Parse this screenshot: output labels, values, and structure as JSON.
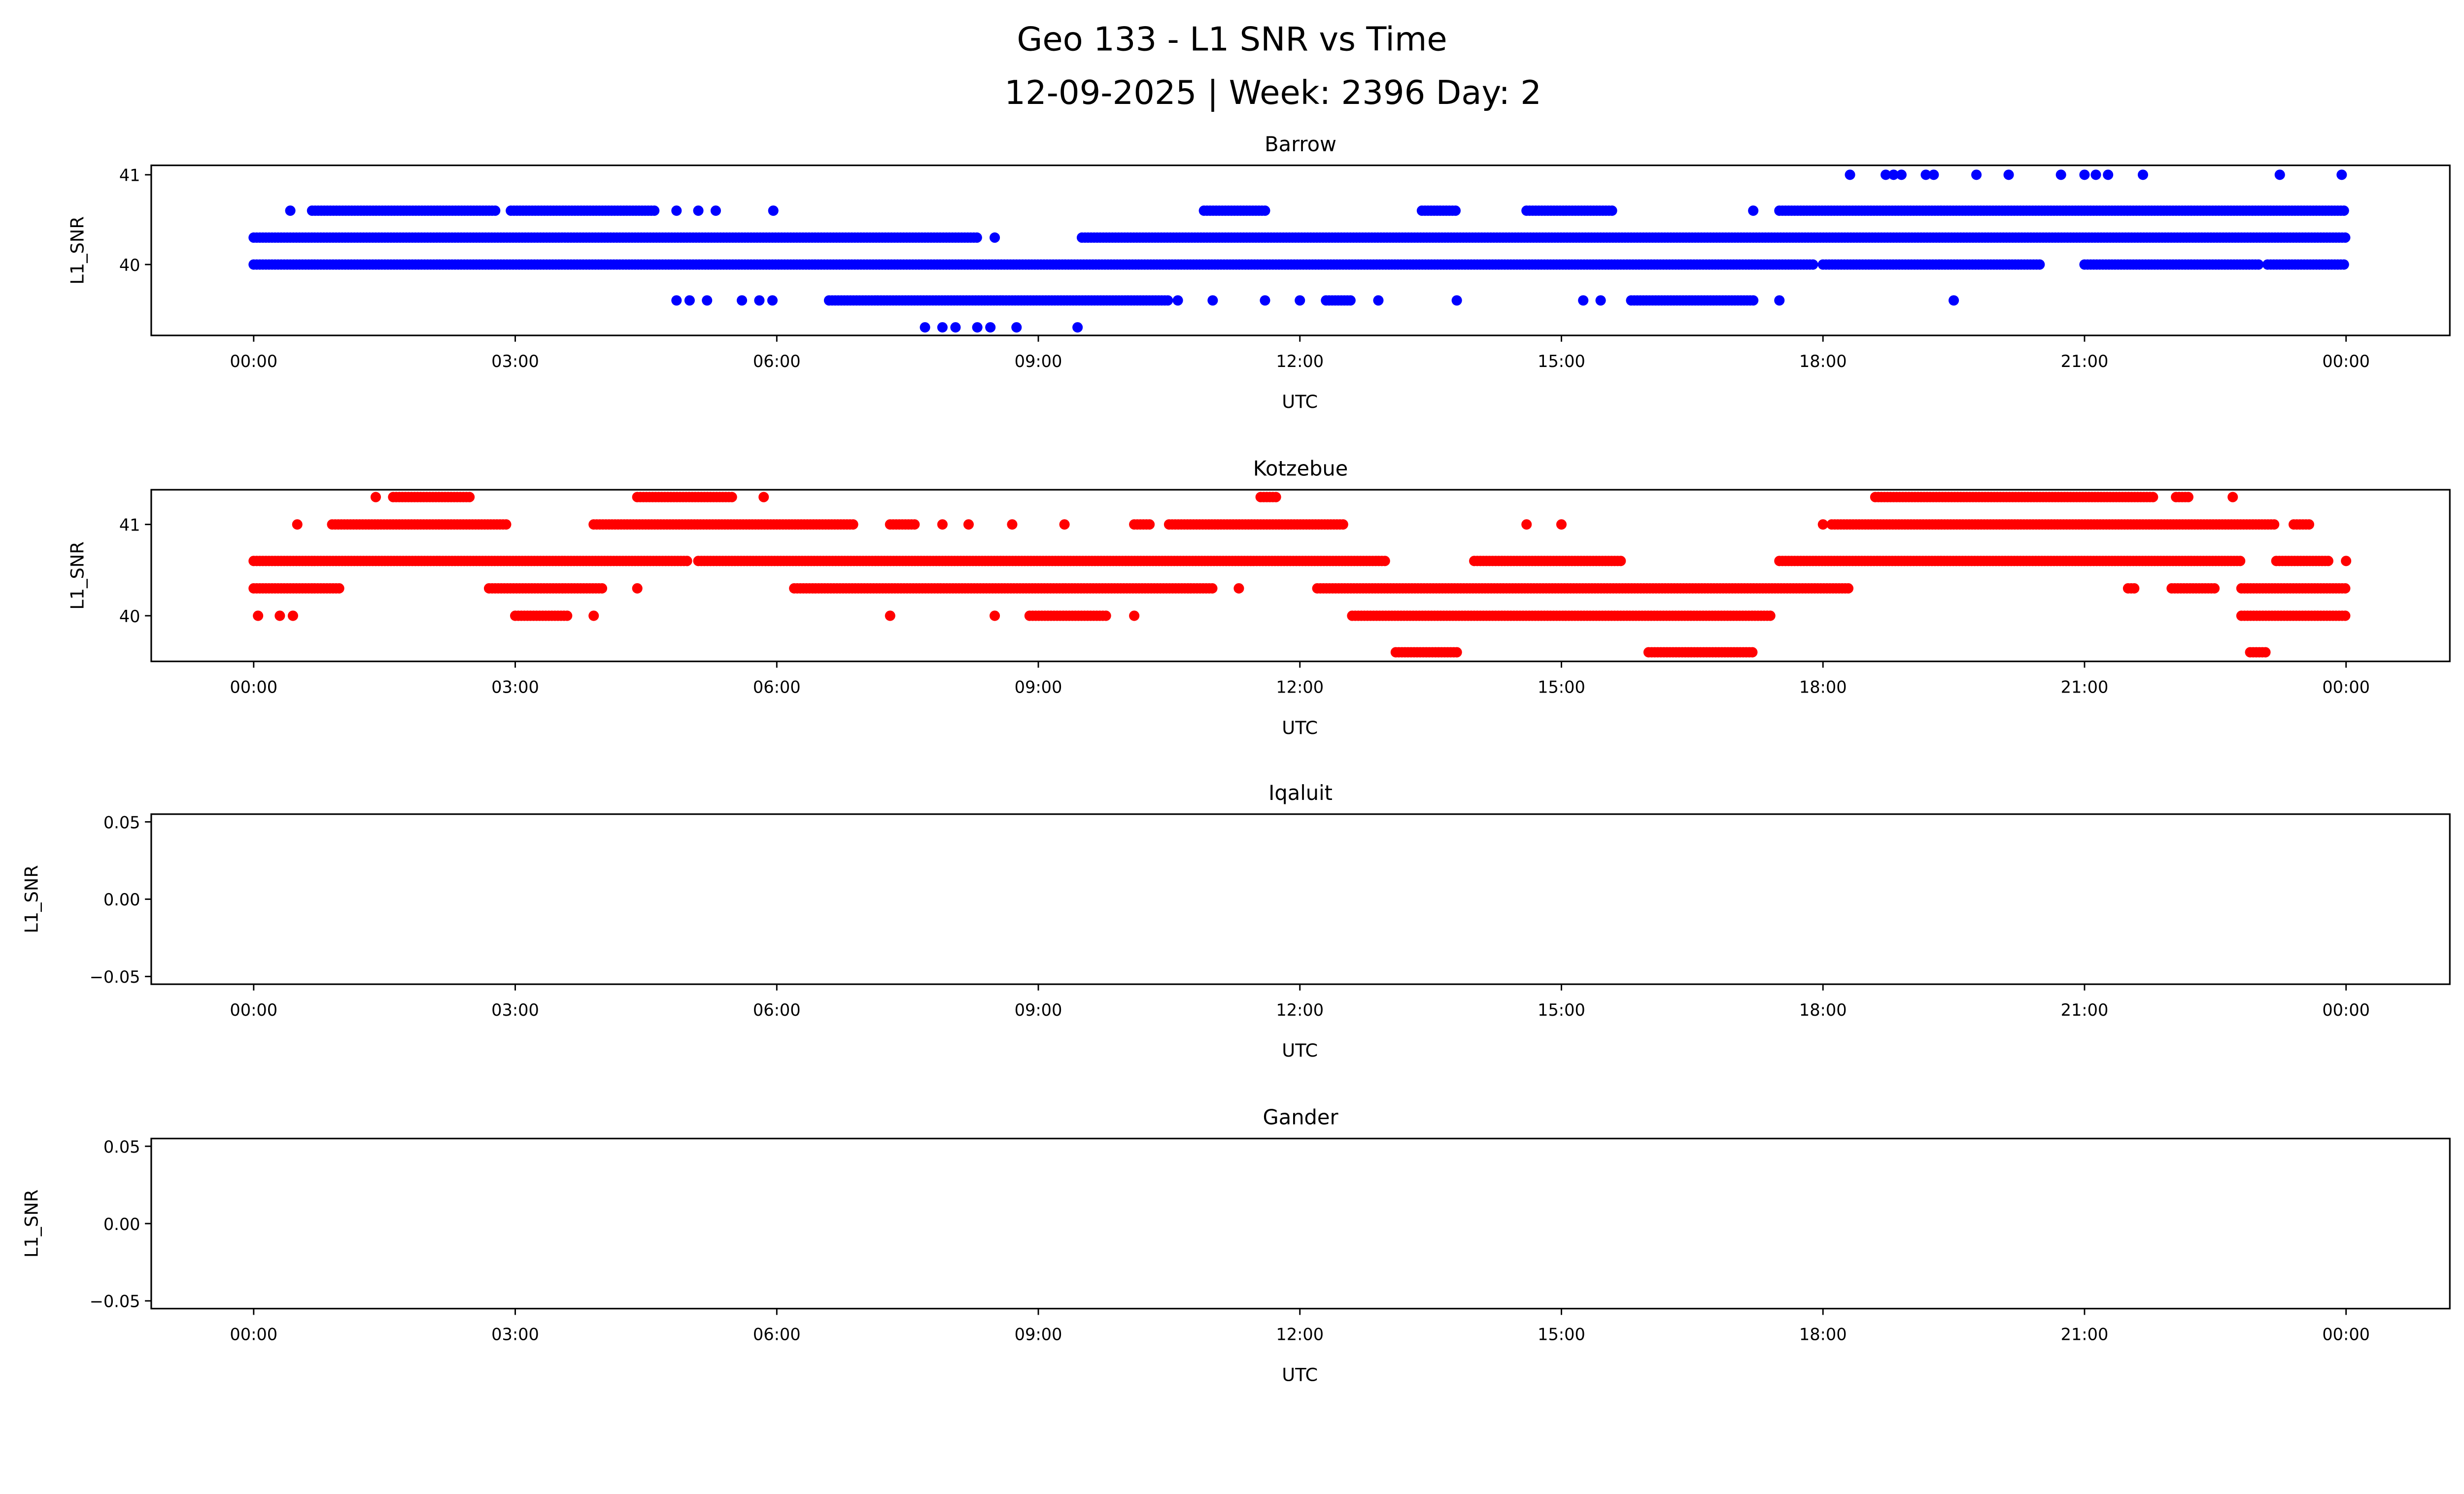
{
  "title_line1": "Geo 133 - L1 SNR vs Time",
  "title_line2": "12-09-2025 | Week: 2396 Day: 2",
  "chart_data": [
    {
      "type": "scatter",
      "title": "Barrow",
      "xlabel": "UTC",
      "ylabel": "L1_SNR",
      "color": "#0000ff",
      "xlim_hours": [
        -1.175,
        25.19
      ],
      "xticks": [
        "00:00",
        "03:00",
        "06:00",
        "09:00",
        "12:00",
        "15:00",
        "18:00",
        "21:00",
        "00:00"
      ],
      "xtick_hours": [
        0,
        3,
        6,
        9,
        12,
        15,
        18,
        21,
        24
      ],
      "ylim": [
        39.21,
        41.105
      ],
      "yticks": [
        "40",
        "41"
      ],
      "ytick_values": [
        40,
        41
      ],
      "series": [
        {
          "y": 41.0,
          "points": [
            18.31,
            18.72,
            18.81,
            18.9,
            19.18,
            19.27,
            19.76,
            20.13,
            20.73,
            21.0,
            21.13,
            21.27,
            21.67,
            23.24,
            23.95
          ],
          "runs": []
        },
        {
          "y": 40.6,
          "points": [
            0.42,
            4.85,
            5.1,
            5.3,
            5.96,
            17.2
          ],
          "runs": [
            [
              0.67,
              2.8
            ],
            [
              2.95,
              4.6
            ],
            [
              10.9,
              11.6
            ],
            [
              13.4,
              13.8
            ],
            [
              14.6,
              15.6
            ],
            [
              17.5,
              24.0
            ]
          ]
        },
        {
          "y": 40.3,
          "points": [
            8.5
          ],
          "runs": [
            [
              0.0,
              8.3
            ],
            [
              9.5,
              24.0
            ]
          ]
        },
        {
          "y": 40.0,
          "points": [],
          "runs": [
            [
              0.0,
              17.9
            ],
            [
              18.0,
              20.5
            ],
            [
              21.0,
              23.0
            ],
            [
              23.1,
              24.0
            ]
          ]
        },
        {
          "y": 39.6,
          "points": [
            4.85,
            5.0,
            5.2,
            5.6,
            5.8,
            5.95,
            10.6,
            11.0,
            11.6,
            12.0,
            12.9,
            13.8,
            15.25,
            15.45,
            17.5,
            19.5
          ],
          "runs": [
            [
              6.6,
              10.5
            ],
            [
              12.3,
              12.6
            ],
            [
              15.8,
              17.2
            ]
          ]
        },
        {
          "y": 39.3,
          "points": [
            7.7,
            7.9,
            8.05,
            8.3,
            8.45,
            8.75,
            9.45
          ],
          "runs": []
        }
      ]
    },
    {
      "type": "scatter",
      "title": "Kotzebue",
      "xlabel": "UTC",
      "ylabel": "L1_SNR",
      "color": "#ff0000",
      "xlim_hours": [
        -1.175,
        25.19
      ],
      "xticks": [
        "00:00",
        "03:00",
        "06:00",
        "09:00",
        "12:00",
        "15:00",
        "18:00",
        "21:00",
        "00:00"
      ],
      "xtick_hours": [
        0,
        3,
        6,
        9,
        12,
        15,
        18,
        21,
        24
      ],
      "ylim": [
        39.5,
        41.38
      ],
      "yticks": [
        "40",
        "41"
      ],
      "ytick_values": [
        40,
        41
      ],
      "series": [
        {
          "y": 41.3,
          "points": [
            1.4,
            5.85,
            22.7
          ],
          "runs": [
            [
              1.6,
              2.5
            ],
            [
              4.4,
              5.5
            ],
            [
              11.55,
              11.75
            ],
            [
              18.6,
              21.8
            ],
            [
              22.05,
              22.2
            ]
          ]
        },
        {
          "y": 41.0,
          "points": [
            0.5,
            7.9,
            8.2,
            8.7,
            9.3,
            14.6,
            15.0,
            18.0
          ],
          "runs": [
            [
              0.9,
              2.9
            ],
            [
              3.9,
              6.9
            ],
            [
              7.3,
              7.6
            ],
            [
              10.1,
              10.3
            ],
            [
              10.5,
              12.5
            ],
            [
              18.1,
              23.2
            ],
            [
              23.4,
              23.6
            ]
          ]
        },
        {
          "y": 40.6,
          "points": [
            24.0
          ],
          "runs": [
            [
              0.0,
              5.0
            ],
            [
              5.1,
              13.0
            ],
            [
              14.0,
              15.7
            ],
            [
              17.5,
              22.8
            ],
            [
              23.2,
              23.8
            ]
          ]
        },
        {
          "y": 40.3,
          "points": [
            4.4,
            11.3
          ],
          "runs": [
            [
              0.0,
              1.0
            ],
            [
              2.7,
              4.0
            ],
            [
              6.2,
              11.0
            ],
            [
              12.2,
              18.3
            ],
            [
              21.5,
              21.6
            ],
            [
              22.0,
              22.5
            ],
            [
              22.8,
              24.0
            ]
          ]
        },
        {
          "y": 40.0,
          "points": [
            0.05,
            0.3,
            0.45,
            3.9,
            7.3,
            8.5,
            10.1
          ],
          "runs": [
            [
              3.0,
              3.6
            ],
            [
              8.9,
              9.8
            ],
            [
              12.6,
              17.4
            ],
            [
              22.8,
              24.0
            ]
          ]
        },
        {
          "y": 39.6,
          "points": [],
          "runs": [
            [
              13.1,
              13.8
            ],
            [
              16.0,
              17.2
            ],
            [
              22.9,
              23.1
            ]
          ]
        }
      ]
    },
    {
      "type": "scatter",
      "title": "Iqaluit",
      "xlabel": "UTC",
      "ylabel": "L1_SNR",
      "color": "#0000ff",
      "xlim_hours": [
        -1.175,
        25.19
      ],
      "xticks": [
        "00:00",
        "03:00",
        "06:00",
        "09:00",
        "12:00",
        "15:00",
        "18:00",
        "21:00",
        "00:00"
      ],
      "xtick_hours": [
        0,
        3,
        6,
        9,
        12,
        15,
        18,
        21,
        24
      ],
      "ylim": [
        -0.055,
        0.055
      ],
      "yticks": [
        "0.05",
        "0.00",
        "−0.05"
      ],
      "ytick_values": [
        0.05,
        0,
        -0.05
      ],
      "series": []
    },
    {
      "type": "scatter",
      "title": "Gander",
      "xlabel": "UTC",
      "ylabel": "L1_SNR",
      "color": "#0000ff",
      "xlim_hours": [
        -1.175,
        25.19
      ],
      "xticks": [
        "00:00",
        "03:00",
        "06:00",
        "09:00",
        "12:00",
        "15:00",
        "18:00",
        "21:00",
        "00:00"
      ],
      "xtick_hours": [
        0,
        3,
        6,
        9,
        12,
        15,
        18,
        21,
        24
      ],
      "ylim": [
        -0.055,
        0.055
      ],
      "yticks": [
        "0.05",
        "0.00",
        "−0.05"
      ],
      "ytick_values": [
        0.05,
        0,
        -0.05
      ],
      "series": []
    }
  ]
}
